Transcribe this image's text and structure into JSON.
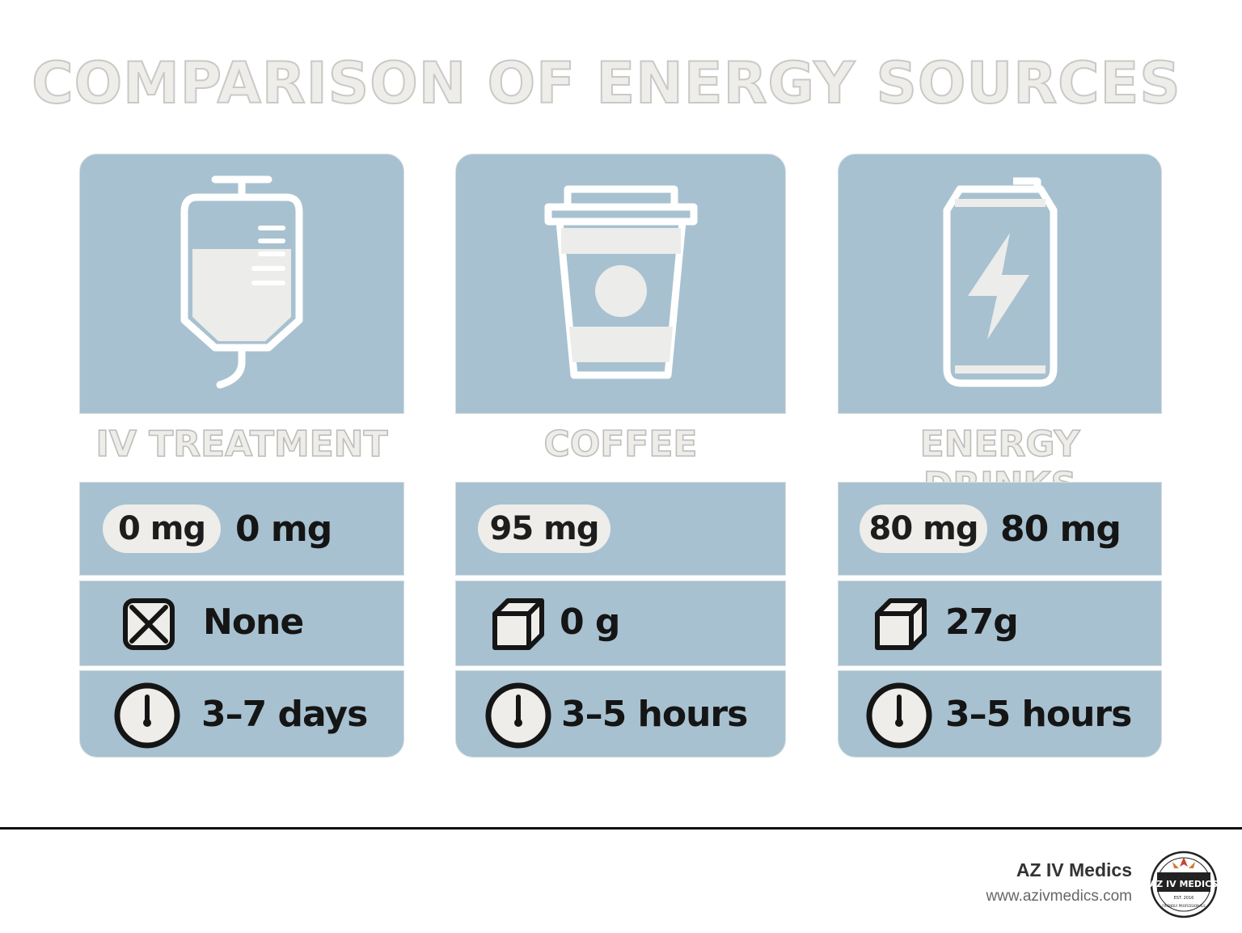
{
  "title": "COMPARISON OF ENERGY SOURCES",
  "columns": [
    {
      "icon": "iv-bag-icon",
      "label": "IV TREATMENT",
      "caffeine_badge": "0 mg",
      "caffeine_text": "0 mg",
      "sugar_icon": "x-box-icon",
      "sugar": "None",
      "duration_icon": "clock-icon",
      "duration": "3–7 days"
    },
    {
      "icon": "coffee-cup-icon",
      "label": "COFFEE",
      "caffeine_badge": "95 mg",
      "caffeine_text": "",
      "sugar_icon": "sugar-cube-icon",
      "sugar": "0 g",
      "duration_icon": "clock-icon",
      "duration": "3–5 hours"
    },
    {
      "icon": "energy-can-icon",
      "label": "ENERGY DRINKS",
      "caffeine_badge": "80 mg",
      "caffeine_text": "80 mg",
      "sugar_icon": "sugar-cube-icon",
      "sugar": "27g",
      "duration_icon": "clock-icon",
      "duration": "3–5 hours"
    }
  ],
  "footer": {
    "brand": "AZ IV Medics",
    "website": "www.azivmedics.com",
    "logo_text": "AZ IV MEDICS",
    "logo_est": "EST. 2016",
    "logo_tagline": "FRIENDLY PROFESSIONALS"
  },
  "colors": {
    "card": "#a7c1d0",
    "pill": "#eeedea",
    "text": "#151515"
  }
}
